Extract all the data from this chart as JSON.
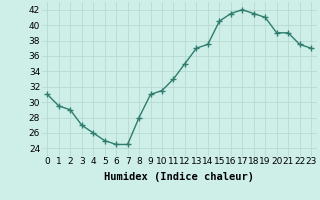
{
  "x": [
    0,
    1,
    2,
    3,
    4,
    5,
    6,
    7,
    8,
    9,
    10,
    11,
    12,
    13,
    14,
    15,
    16,
    17,
    18,
    19,
    20,
    21,
    22,
    23
  ],
  "y": [
    31,
    29.5,
    29,
    27,
    26,
    25,
    24.5,
    24.5,
    28,
    31,
    31.5,
    33,
    35,
    37,
    37.5,
    40.5,
    41.5,
    42,
    41.5,
    41,
    39,
    39,
    37.5,
    37
  ],
  "line_color": "#2e7d6e",
  "marker": "+",
  "marker_size": 4,
  "linewidth": 1.0,
  "xlabel": "Humidex (Indice chaleur)",
  "xlabel_fontsize": 7.5,
  "ylim": [
    23,
    43
  ],
  "yticks": [
    24,
    26,
    28,
    30,
    32,
    34,
    36,
    38,
    40,
    42
  ],
  "xticks": [
    0,
    1,
    2,
    3,
    4,
    5,
    6,
    7,
    8,
    9,
    10,
    11,
    12,
    13,
    14,
    15,
    16,
    17,
    18,
    19,
    20,
    21,
    22,
    23
  ],
  "xtick_labels": [
    "0",
    "1",
    "2",
    "3",
    "4",
    "5",
    "6",
    "7",
    "8",
    "9",
    "10",
    "11",
    "12",
    "13",
    "14",
    "15",
    "16",
    "17",
    "18",
    "19",
    "20",
    "21",
    "22",
    "23"
  ],
  "bg_color": "#ceeee8",
  "grid_color": "#b8d8d2",
  "tick_fontsize": 6.5
}
